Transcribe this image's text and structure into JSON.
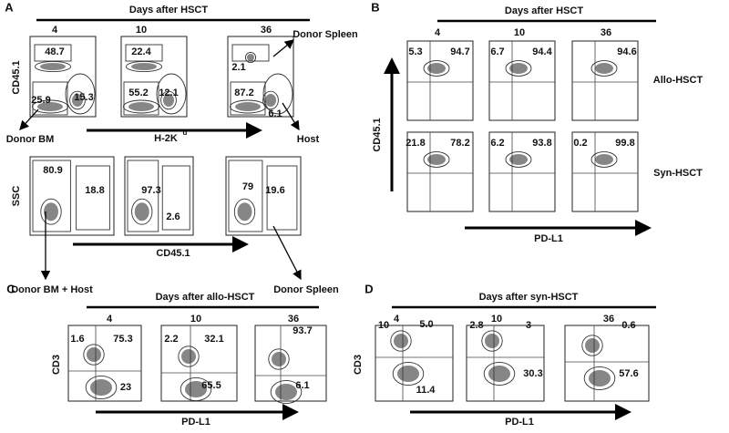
{
  "panel_a": {
    "letter": "A",
    "header": "Days after HSCT",
    "days": [
      "4",
      "10",
      "36"
    ],
    "top": {
      "y_label": "CD45.1",
      "x_label": "H-2K",
      "x_label_sup": "d",
      "plots": [
        [
          "48.7",
          "25.9",
          "15.3"
        ],
        [
          "22.4",
          "55.2",
          "12.1"
        ],
        [
          "2.1",
          "87.2",
          "6.1"
        ]
      ],
      "annotations": [
        "Donor Spleen",
        "Donor BM",
        "Host"
      ]
    },
    "bottom": {
      "y_label": "SSC",
      "x_label": "CD45.1",
      "plots": [
        [
          "80.9",
          "18.8"
        ],
        [
          "97.3",
          "2.6"
        ],
        [
          "79",
          "19.6"
        ]
      ],
      "annotations": [
        "Donor BM + Host",
        "Donor Spleen"
      ]
    }
  },
  "panel_b": {
    "letter": "B",
    "header": "Days after HSCT",
    "days": [
      "4",
      "10",
      "36"
    ],
    "y_label": "CD45.1",
    "x_label": "PD-L1",
    "rows": [
      {
        "name": "Allo-HSCT",
        "plots": [
          [
            "5.3",
            "94.7"
          ],
          [
            "6.7",
            "94.4"
          ],
          [
            "94.6"
          ]
        ]
      },
      {
        "name": "Syn-HSCT",
        "plots": [
          [
            "21.8",
            "78.2"
          ],
          [
            "6.2",
            "93.8"
          ],
          [
            "0.2",
            "99.8"
          ]
        ]
      }
    ]
  },
  "panel_c": {
    "letter": "C",
    "header": "Days after allo-HSCT",
    "days": [
      "4",
      "10",
      "36"
    ],
    "y_label": "CD3",
    "x_label": "PD-L1",
    "plots": [
      [
        "1.6",
        "75.3",
        "23"
      ],
      [
        "2.2",
        "32.1",
        "65.5"
      ],
      [
        "93.7",
        "6.1"
      ]
    ]
  },
  "panel_d": {
    "letter": "D",
    "header": "Days after syn-HSCT",
    "days": [
      "4",
      "10",
      "36"
    ],
    "y_label": "CD3",
    "x_label": "PD-L1",
    "plots": [
      [
        "10",
        "5.0",
        "11.4"
      ],
      [
        "2.8",
        "3",
        "30.3"
      ],
      [
        "0.6",
        "57.6"
      ]
    ]
  }
}
